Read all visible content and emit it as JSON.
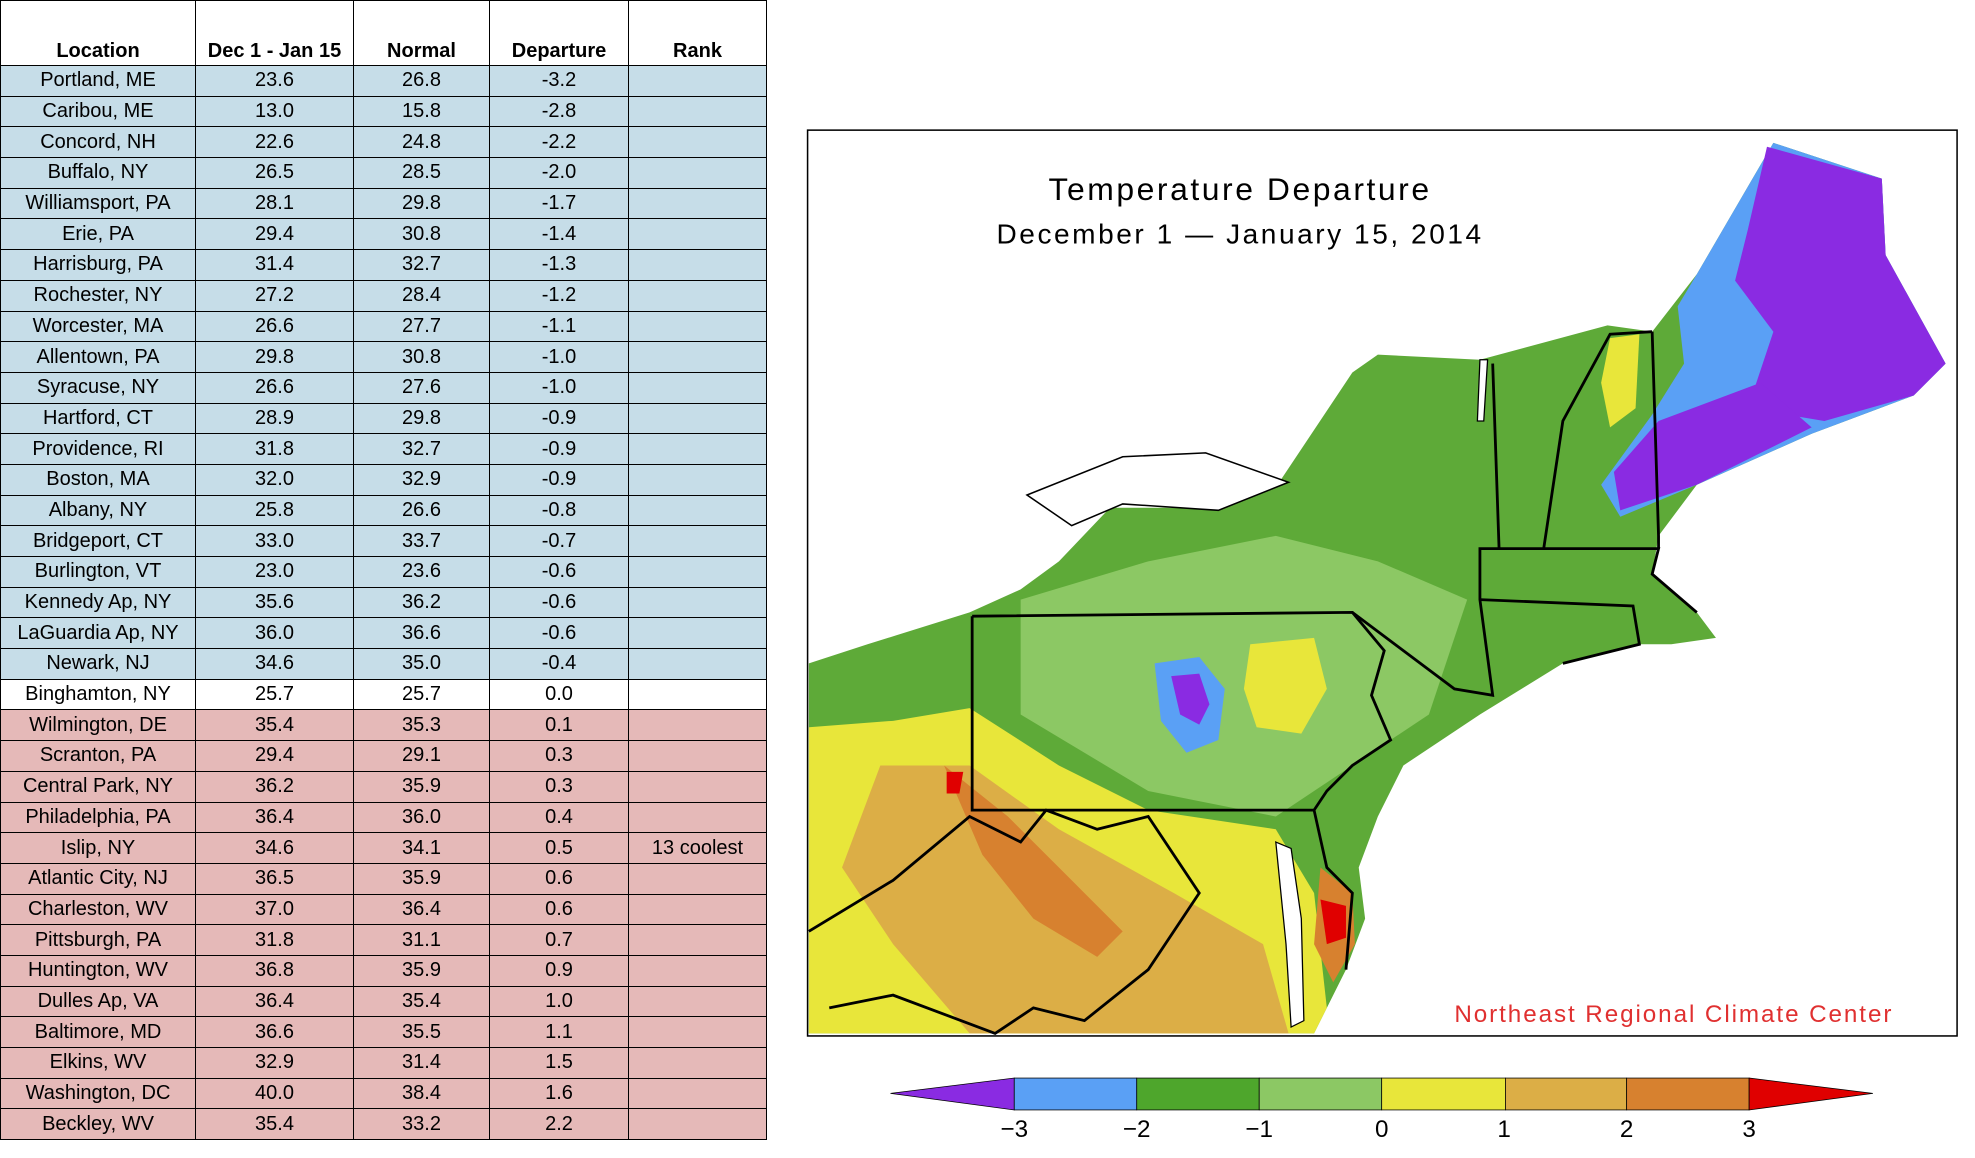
{
  "table": {
    "header": [
      "Location",
      "Dec 1 - Jan 15",
      "Normal",
      "Departure",
      "Rank"
    ],
    "rows": [
      {
        "location": "Portland, ME",
        "period": "23.6",
        "normal": "26.8",
        "departure": "-3.2"
      },
      {
        "location": "Caribou, ME",
        "period": "13.0",
        "normal": "15.8",
        "departure": "-2.8"
      },
      {
        "location": "Concord, NH",
        "period": "22.6",
        "normal": "24.8",
        "departure": "-2.2"
      },
      {
        "location": "Buffalo, NY",
        "period": "26.5",
        "normal": "28.5",
        "departure": "-2.0"
      },
      {
        "location": "Williamsport, PA",
        "period": "28.1",
        "normal": "29.8",
        "departure": "-1.7"
      },
      {
        "location": "Erie, PA",
        "period": "29.4",
        "normal": "30.8",
        "departure": "-1.4"
      },
      {
        "location": "Harrisburg, PA",
        "period": "31.4",
        "normal": "32.7",
        "departure": "-1.3"
      },
      {
        "location": "Rochester, NY",
        "period": "27.2",
        "normal": "28.4",
        "departure": "-1.2"
      },
      {
        "location": "Worcester, MA",
        "period": "26.6",
        "normal": "27.7",
        "departure": "-1.1"
      },
      {
        "location": "Allentown, PA",
        "period": "29.8",
        "normal": "30.8",
        "departure": "-1.0"
      },
      {
        "location": "Syracuse, NY",
        "period": "26.6",
        "normal": "27.6",
        "departure": "-1.0"
      },
      {
        "location": "Hartford, CT",
        "period": "28.9",
        "normal": "29.8",
        "departure": "-0.9"
      },
      {
        "location": "Providence, RI",
        "period": "31.8",
        "normal": "32.7",
        "departure": "-0.9"
      },
      {
        "location": "Boston, MA",
        "period": "32.0",
        "normal": "32.9",
        "departure": "-0.9"
      },
      {
        "location": "Albany, NY",
        "period": "25.8",
        "normal": "26.6",
        "departure": "-0.8"
      },
      {
        "location": "Bridgeport, CT",
        "period": "33.0",
        "normal": "33.7",
        "departure": "-0.7"
      },
      {
        "location": "Burlington, VT",
        "period": "23.0",
        "normal": "23.6",
        "departure": "-0.6"
      },
      {
        "location": "Kennedy Ap, NY",
        "period": "35.6",
        "normal": "36.2",
        "departure": "-0.6"
      },
      {
        "location": "LaGuardia Ap, NY",
        "period": "36.0",
        "normal": "36.6",
        "departure": "-0.6"
      },
      {
        "location": "Newark, NJ",
        "period": "34.6",
        "normal": "35.0",
        "departure": "-0.4"
      },
      {
        "location": "Binghamton, NY",
        "period": "25.7",
        "normal": "25.7",
        "departure": "0.0"
      },
      {
        "location": "Wilmington, DE",
        "period": "35.4",
        "normal": "35.3",
        "departure": "0.1"
      },
      {
        "location": "Scranton, PA",
        "period": "29.4",
        "normal": "29.1",
        "departure": "0.3"
      },
      {
        "location": "Central Park, NY",
        "period": "36.2",
        "normal": "35.9",
        "departure": "0.3"
      },
      {
        "location": "Philadelphia, PA",
        "period": "36.4",
        "normal": "36.0",
        "departure": "0.4"
      },
      {
        "location": "Islip, NY",
        "period": "34.6",
        "normal": "34.1",
        "departure": "0.5",
        "rank": "13 coolest"
      },
      {
        "location": "Atlantic City, NJ",
        "period": "36.5",
        "normal": "35.9",
        "departure": "0.6"
      },
      {
        "location": "Charleston, WV",
        "period": "37.0",
        "normal": "36.4",
        "departure": "0.6"
      },
      {
        "location": "Pittsburgh, PA",
        "period": "31.8",
        "normal": "31.1",
        "departure": "0.7"
      },
      {
        "location": "Huntington, WV",
        "period": "36.8",
        "normal": "35.9",
        "departure": "0.9"
      },
      {
        "location": "Dulles Ap, VA",
        "period": "36.4",
        "normal": "35.4",
        "departure": "1.0"
      },
      {
        "location": "Baltimore, MD",
        "period": "36.6",
        "normal": "35.5",
        "departure": "1.1"
      },
      {
        "location": "Elkins, WV",
        "period": "32.9",
        "normal": "31.4",
        "departure": "1.5"
      },
      {
        "location": "Washington, DC",
        "period": "40.0",
        "normal": "38.4",
        "departure": "1.6"
      },
      {
        "location": "Beckley, WV",
        "period": "35.4",
        "normal": "33.2",
        "departure": "2.2"
      }
    ]
  },
  "map": {
    "title": "Temperature Departure",
    "subtitle": "December 1 — January 15, 2014",
    "credit": "Northeast Regional Climate Center"
  },
  "legend": {
    "labels": [
      "−3",
      "−2",
      "−1",
      "0",
      "1",
      "2",
      "3"
    ]
  }
}
